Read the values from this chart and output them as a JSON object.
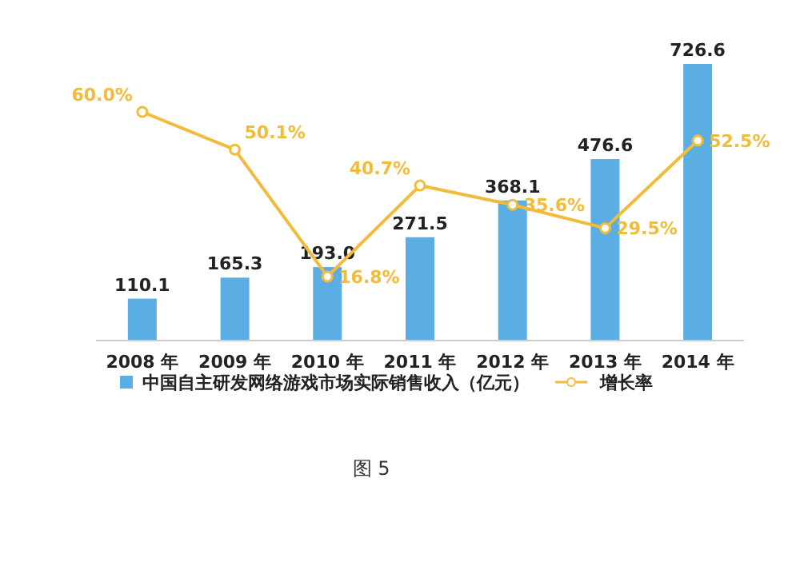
{
  "chart_data": {
    "type": "bar",
    "categories": [
      "2008 年",
      "2009 年",
      "2010 年",
      "2011 年",
      "2012 年",
      "2013 年",
      "2014 年"
    ],
    "series": [
      {
        "name": "中国自主研发网络游戏市场实际销售收入（亿元）",
        "color": "#5aaee3",
        "values": [
          110.1,
          165.3,
          193.0,
          271.5,
          368.1,
          476.6,
          726.6
        ],
        "value_labels": [
          "110.1",
          "165.3",
          "193.0",
          "271.5",
          "368.1",
          "476.6",
          "726.6"
        ]
      },
      {
        "name": "增长率",
        "type": "line",
        "axis": "y2",
        "color": "#f2bb3a",
        "marker": "circle",
        "line_style": "solid",
        "values": [
          60.0,
          50.1,
          16.8,
          40.7,
          35.6,
          29.5,
          52.5
        ],
        "value_labels": [
          "60.0%",
          "50.1%",
          "16.8%",
          "40.7%",
          "35.6%",
          "29.5%",
          "52.5%"
        ]
      }
    ],
    "legend": "bottom",
    "annotations": [
      "图 5"
    ]
  }
}
